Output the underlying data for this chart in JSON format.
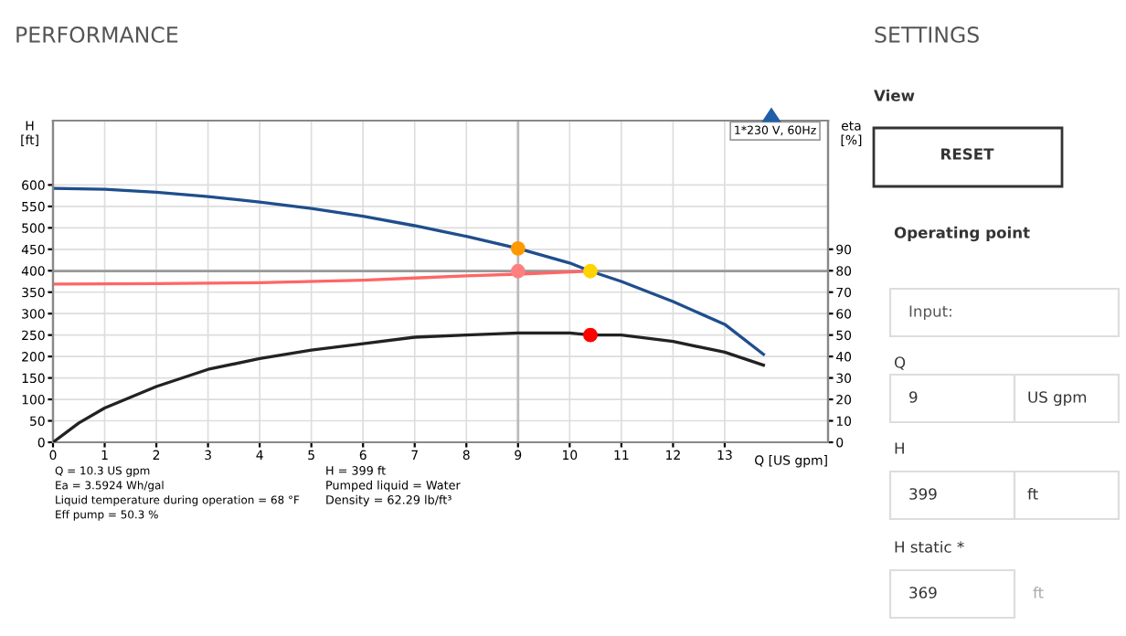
{
  "chart_data": [
    {
      "type": "line",
      "title": "PERFORMANCE",
      "xlabel": "Q [US gpm]",
      "ylabel": "H\n[ft]",
      "y2label": "eta\n[%]",
      "xlim": [
        0,
        15
      ],
      "xticks": [
        0,
        1,
        2,
        3,
        4,
        5,
        6,
        7,
        8,
        9,
        10,
        11,
        12,
        13
      ],
      "ylim": [
        0,
        750
      ],
      "yticks": [
        0,
        50,
        100,
        150,
        200,
        250,
        300,
        350,
        400,
        450,
        500,
        550,
        600
      ],
      "y2lim": [
        0,
        150
      ],
      "y2ticks": [
        0,
        10,
        20,
        30,
        40,
        50,
        60,
        70,
        80,
        90
      ],
      "grid": true,
      "series": [
        {
          "type": "line",
          "color": "#1f4e8c",
          "x": [
            0,
            1,
            2,
            3,
            4,
            5,
            6,
            7,
            8,
            9,
            10,
            10.4,
            11,
            12,
            13,
            13.75
          ],
          "values": [
            592,
            590,
            583,
            573,
            560,
            545,
            527,
            505,
            480,
            452,
            418,
            399,
            375,
            328,
            275,
            205
          ]
        },
        {
          "type": "line",
          "color": "#ff6666",
          "x": [
            0,
            2,
            4,
            6,
            7,
            8,
            9,
            10.4
          ],
          "values": [
            369,
            370,
            372,
            378,
            383,
            388,
            392,
            399
          ]
        },
        {
          "type": "line",
          "axis": "y2",
          "color": "#222222",
          "x": [
            0,
            0.5,
            1,
            2,
            3,
            4,
            5,
            6,
            7,
            8,
            9,
            10,
            10.4,
            11,
            12,
            13,
            13.75
          ],
          "values": [
            0,
            9,
            16,
            26,
            34,
            39,
            43,
            46,
            49,
            50,
            51,
            51,
            50,
            50,
            47,
            42,
            36
          ]
        },
        {
          "type": "scatter",
          "marker": "circle",
          "color": "#ff9900",
          "x": [
            9
          ],
          "values": [
            452
          ]
        },
        {
          "type": "scatter",
          "marker": "circle",
          "color": "#ff8080",
          "x": [
            9
          ],
          "values": [
            399
          ]
        },
        {
          "type": "scatter",
          "marker": "circle",
          "color": "#ffd400",
          "x": [
            10.4
          ],
          "values": [
            399
          ]
        },
        {
          "type": "scatter",
          "axis": "y2",
          "marker": "circle",
          "color": "#ff0000",
          "x": [
            10.4
          ],
          "values": [
            50
          ]
        }
      ],
      "ref_lines": [
        {
          "axis": "y",
          "value": 399,
          "color": "#999999"
        },
        {
          "axis": "x",
          "value": 9,
          "color": "#bbbbbb"
        }
      ],
      "annotations": [
        "1*230 V, 60Hz",
        "Q = 10.3 US gpm",
        "Ea = 3.5924 Wh/gal",
        "Liquid temperature during operation = 68 °F",
        "Eff pump = 50.3 %",
        "H = 399 ft",
        "Pumped liquid = Water",
        "Density = 62.29 lb/ft³"
      ]
    },
    {
      "type": "other",
      "title": "SETTINGS",
      "annotations": [
        "View",
        "RESET",
        "Operating point",
        "Input:",
        "Q",
        "9",
        "US gpm",
        "H",
        "399",
        "ft",
        "H static *",
        "369",
        "ft"
      ]
    }
  ]
}
